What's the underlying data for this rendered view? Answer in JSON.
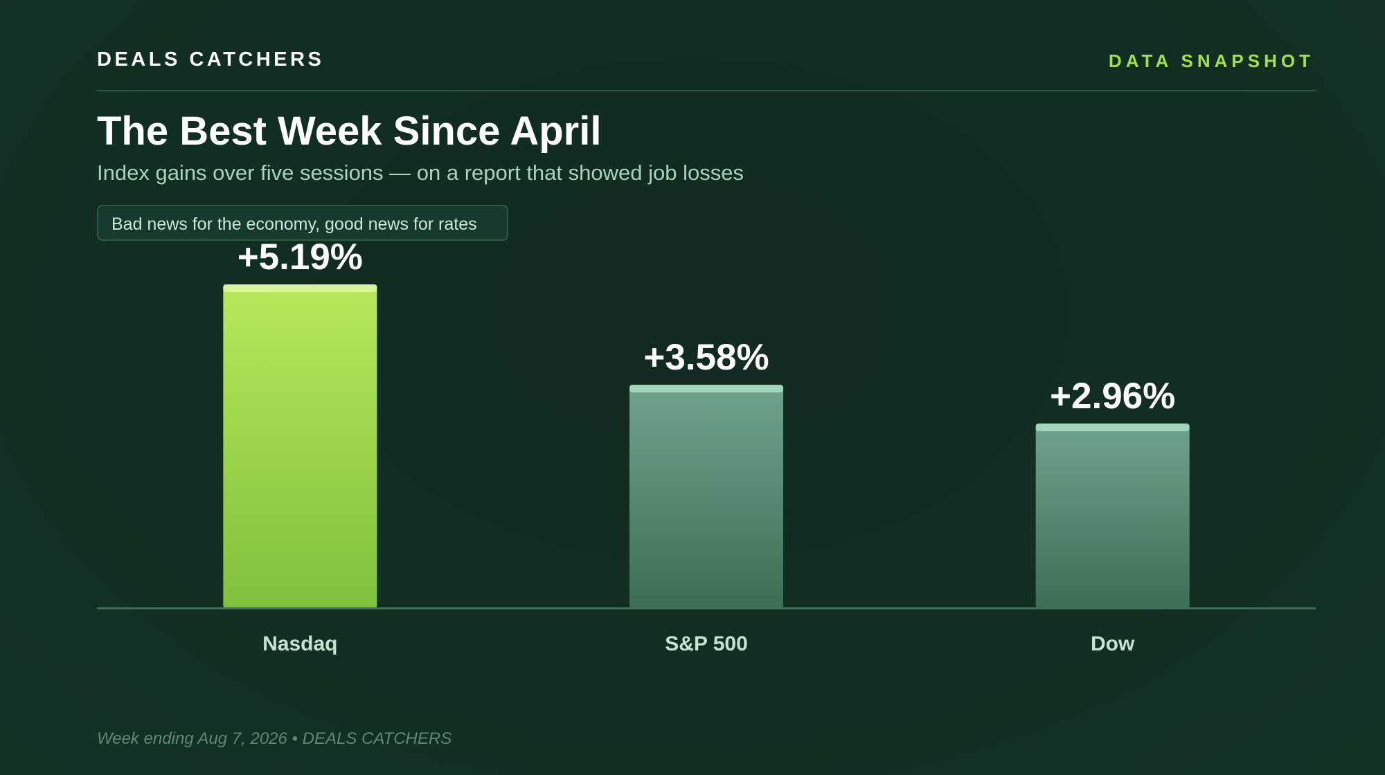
{
  "header": {
    "brand": "DEALS CATCHERS",
    "tag": "DATA SNAPSHOT"
  },
  "title": "The Best Week Since April",
  "subtitle": "Index gains over five sessions — on a report that showed job losses",
  "callout": "Bad news for the economy, good news for rates",
  "footer": "Week ending Aug 7, 2026 • DEALS CATCHERS",
  "colors": {
    "background": "#122e22",
    "accent": "#a3e04a",
    "highlight_bar_top": "#b8e85a",
    "highlight_bar_bottom": "#7fc13c",
    "highlight_cap": "#d6f59a",
    "muted_bar_top": "#6fa48c",
    "muted_bar_bottom": "#3c6e55",
    "muted_cap": "#a3d5ba",
    "axis": "#3d7257",
    "value_label": "#ffffff",
    "category_label": "#c5e3d2"
  },
  "chart_data": {
    "type": "bar",
    "categories": [
      "Nasdaq",
      "S&P 500",
      "Dow"
    ],
    "values": [
      5.19,
      3.58,
      2.96
    ],
    "value_labels": [
      "+5.19%",
      "+3.58%",
      "+2.96%"
    ],
    "highlight_index": 0,
    "ylim": [
      0,
      5.19
    ],
    "grid": false,
    "legend": "none"
  }
}
